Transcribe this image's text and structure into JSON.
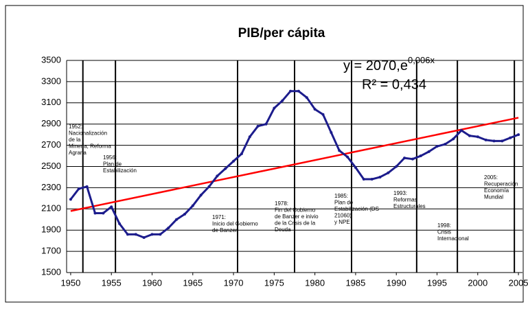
{
  "chart_data": {
    "type": "line",
    "title": "PIB/per cápita",
    "x": [
      1950,
      1951,
      1952,
      1953,
      1954,
      1955,
      1956,
      1957,
      1958,
      1959,
      1960,
      1961,
      1962,
      1963,
      1964,
      1965,
      1966,
      1967,
      1968,
      1969,
      1970,
      1971,
      1972,
      1973,
      1974,
      1975,
      1976,
      1977,
      1978,
      1979,
      1980,
      1981,
      1982,
      1983,
      1984,
      1985,
      1986,
      1987,
      1988,
      1989,
      1990,
      1991,
      1992,
      1993,
      1994,
      1995,
      1996,
      1997,
      1998,
      1999,
      2000,
      2001,
      2002,
      2003,
      2004,
      2005
    ],
    "series": [
      {
        "color": "#1c1c8c",
        "values": [
          2190,
          2290,
          2310,
          2060,
          2060,
          2120,
          1960,
          1860,
          1860,
          1830,
          1860,
          1860,
          1920,
          2000,
          2050,
          2130,
          2230,
          2310,
          2410,
          2480,
          2550,
          2620,
          2780,
          2880,
          2900,
          3050,
          3120,
          3210,
          3210,
          3150,
          3040,
          2990,
          2820,
          2650,
          2590,
          2490,
          2380,
          2380,
          2400,
          2440,
          2500,
          2580,
          2570,
          2600,
          2640,
          2690,
          2710,
          2760,
          2840,
          2790,
          2780,
          2750,
          2740,
          2740,
          2770,
          2800
        ]
      }
    ],
    "trend": {
      "color": "#ff0000",
      "x": [
        1950,
        2005
      ],
      "values": [
        2080,
        2960
      ]
    },
    "equation": {
      "base": "y = 2070,e",
      "exponent": "0,006x"
    },
    "r_squared": "R² = 0,434",
    "xlim": [
      1949.5,
      2005.5
    ],
    "xticks": [
      1950,
      1955,
      1960,
      1965,
      1970,
      1975,
      1980,
      1985,
      1990,
      1995,
      2000,
      2005
    ],
    "ylim": [
      1500,
      3500
    ],
    "yticks": [
      1500,
      1700,
      1900,
      2100,
      2300,
      2500,
      2700,
      2900,
      3100,
      3300,
      3500
    ],
    "grid": true,
    "events": [
      {
        "x": 1951.5,
        "lines": [
          "1952:",
          "Nacionalización",
          "de la",
          "Minería, Reforma",
          "Agraria"
        ]
      },
      {
        "x": 1955.5,
        "lines": [
          "1956:",
          "Plan de",
          "Estabilización"
        ]
      },
      {
        "x": 1970.5,
        "lines": [
          "1971:",
          "Inicio del Gobierno",
          "de Banzer"
        ]
      },
      {
        "x": 1977.5,
        "lines": [
          "1978:",
          "Fin del Gobierno",
          "de Banzer e inivio",
          "de la Crisis de la",
          "Deuda"
        ]
      },
      {
        "x": 1984.5,
        "lines": [
          "1985:",
          "Plan de",
          "Estabilización (DS",
          "21060)",
          "y NPE"
        ]
      },
      {
        "x": 1992.5,
        "lines": [
          "1993:",
          "Reformas",
          "Estructurales"
        ]
      },
      {
        "x": 1997.5,
        "lines": [
          "1998:",
          "Crisis",
          "Internacional"
        ]
      },
      {
        "x": 2004.5,
        "lines": [
          "2005:",
          "Recuperación",
          "Economía",
          "Mundial"
        ]
      }
    ]
  }
}
